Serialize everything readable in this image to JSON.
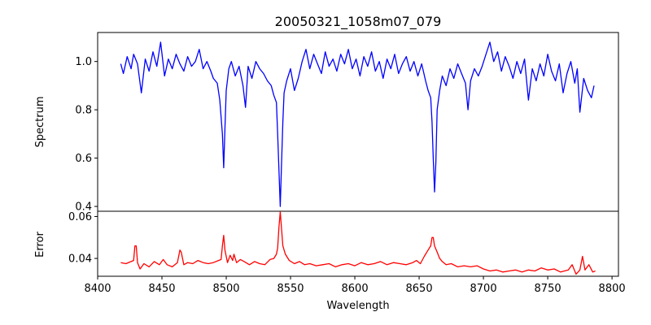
{
  "chart_data": [
    {
      "type": "line",
      "title": "20050321_1058m07_079",
      "xlabel": "",
      "ylabel": "Spectrum",
      "xlim": [
        8400,
        8805
      ],
      "ylim": [
        0.38,
        1.12
      ],
      "xticks": [
        8400,
        8450,
        8500,
        8550,
        8600,
        8650,
        8700,
        8750,
        8800
      ],
      "yticks": [
        0.4,
        0.6,
        0.8,
        1.0
      ],
      "ytick_labels": [
        "0.4",
        "0.6",
        "0.8",
        "1.0"
      ],
      "grid": false,
      "series": [
        {
          "color": "#0000ff",
          "x": [
            8418,
            8420,
            8423,
            8426,
            8428,
            8431,
            8434,
            8437,
            8440,
            8443,
            8446,
            8449,
            8452,
            8455,
            8458,
            8461,
            8464,
            8467,
            8470,
            8473,
            8476,
            8479,
            8482,
            8485,
            8488,
            8490,
            8493,
            8495,
            8497,
            8498,
            8499,
            8500,
            8502,
            8504,
            8507,
            8510,
            8513,
            8515,
            8517,
            8520,
            8523,
            8526,
            8529,
            8532,
            8535,
            8537,
            8539,
            8540,
            8541,
            8542,
            8543,
            8544,
            8545,
            8547,
            8550,
            8553,
            8556,
            8559,
            8562,
            8565,
            8568,
            8571,
            8574,
            8577,
            8580,
            8583,
            8586,
            8589,
            8592,
            8595,
            8598,
            8601,
            8604,
            8607,
            8610,
            8613,
            8616,
            8619,
            8622,
            8625,
            8628,
            8631,
            8634,
            8637,
            8640,
            8643,
            8646,
            8649,
            8652,
            8655,
            8657,
            8659,
            8660,
            8661,
            8662,
            8663,
            8664,
            8666,
            8668,
            8671,
            8674,
            8677,
            8680,
            8683,
            8686,
            8688,
            8690,
            8693,
            8696,
            8699,
            8702,
            8705,
            8708,
            8711,
            8714,
            8717,
            8720,
            8723,
            8726,
            8729,
            8732,
            8735,
            8738,
            8741,
            8744,
            8747,
            8750,
            8753,
            8756,
            8759,
            8762,
            8765,
            8768,
            8771,
            8773,
            8775,
            8778,
            8781,
            8784,
            8786
          ],
          "values": [
            0.99,
            0.95,
            1.02,
            0.97,
            1.03,
            0.99,
            0.87,
            1.01,
            0.96,
            1.04,
            0.98,
            1.08,
            0.94,
            1.01,
            0.97,
            1.03,
            0.99,
            0.96,
            1.02,
            0.98,
            1.0,
            1.05,
            0.97,
            1.0,
            0.96,
            0.93,
            0.91,
            0.84,
            0.7,
            0.56,
            0.72,
            0.88,
            0.97,
            1.0,
            0.94,
            0.98,
            0.9,
            0.81,
            0.98,
            0.93,
            1.0,
            0.97,
            0.95,
            0.92,
            0.9,
            0.86,
            0.83,
            0.7,
            0.55,
            0.4,
            0.58,
            0.75,
            0.87,
            0.92,
            0.97,
            0.88,
            0.93,
            1.0,
            1.05,
            0.97,
            1.03,
            0.99,
            0.95,
            1.04,
            0.98,
            1.01,
            0.96,
            1.03,
            0.99,
            1.05,
            0.97,
            1.01,
            0.94,
            1.02,
            0.98,
            1.04,
            0.96,
            1.0,
            0.93,
            1.01,
            0.97,
            1.03,
            0.95,
            0.99,
            1.02,
            0.96,
            1.0,
            0.94,
            0.99,
            0.92,
            0.88,
            0.85,
            0.75,
            0.6,
            0.46,
            0.58,
            0.8,
            0.88,
            0.94,
            0.9,
            0.97,
            0.93,
            0.99,
            0.95,
            0.91,
            0.8,
            0.92,
            0.97,
            0.94,
            0.98,
            1.03,
            1.08,
            1.0,
            1.04,
            0.96,
            1.02,
            0.98,
            0.93,
            1.0,
            0.95,
            1.01,
            0.84,
            0.97,
            0.92,
            0.99,
            0.94,
            1.03,
            0.96,
            0.92,
            0.99,
            0.87,
            0.95,
            1.0,
            0.91,
            0.97,
            0.79,
            0.93,
            0.88,
            0.85,
            0.9
          ]
        }
      ]
    },
    {
      "type": "line",
      "title": "",
      "xlabel": "Wavelength",
      "ylabel": "Error",
      "xlim": [
        8400,
        8805
      ],
      "ylim": [
        0.0315,
        0.0625
      ],
      "xticks": [
        8400,
        8450,
        8500,
        8550,
        8600,
        8650,
        8700,
        8750,
        8800
      ],
      "xtick_labels": [
        "8400",
        "8450",
        "8500",
        "8550",
        "8600",
        "8650",
        "8700",
        "8750",
        "8800"
      ],
      "yticks": [
        0.04,
        0.06
      ],
      "ytick_labels": [
        "0.04",
        "0.06"
      ],
      "grid": false,
      "series": [
        {
          "color": "#ff0000",
          "x": [
            8418,
            8422,
            8426,
            8428,
            8429,
            8430,
            8431,
            8433,
            8436,
            8440,
            8444,
            8448,
            8451,
            8454,
            8458,
            8462,
            8464,
            8465,
            8467,
            8470,
            8474,
            8478,
            8482,
            8486,
            8490,
            8494,
            8496,
            8497,
            8498,
            8499,
            8501,
            8503,
            8505,
            8506,
            8508,
            8511,
            8514,
            8518,
            8522,
            8526,
            8530,
            8534,
            8537,
            8539,
            8540,
            8541,
            8542,
            8543,
            8544,
            8546,
            8549,
            8553,
            8557,
            8561,
            8565,
            8570,
            8575,
            8580,
            8585,
            8590,
            8595,
            8600,
            8605,
            8610,
            8615,
            8620,
            8625,
            8630,
            8635,
            8640,
            8645,
            8648,
            8651,
            8654,
            8657,
            8659,
            8660,
            8661,
            8662,
            8663,
            8664,
            8666,
            8668,
            8671,
            8675,
            8680,
            8685,
            8690,
            8695,
            8700,
            8705,
            8710,
            8715,
            8720,
            8725,
            8730,
            8735,
            8740,
            8745,
            8750,
            8755,
            8760,
            8763,
            8766,
            8769,
            8772,
            8775,
            8777,
            8779,
            8782,
            8785,
            8787
          ],
          "values": [
            0.038,
            0.0375,
            0.0385,
            0.039,
            0.046,
            0.046,
            0.038,
            0.035,
            0.0375,
            0.036,
            0.0385,
            0.037,
            0.0395,
            0.037,
            0.036,
            0.038,
            0.044,
            0.043,
            0.037,
            0.038,
            0.0375,
            0.039,
            0.038,
            0.0375,
            0.038,
            0.039,
            0.0395,
            0.046,
            0.051,
            0.044,
            0.038,
            0.0415,
            0.039,
            0.042,
            0.038,
            0.0395,
            0.0385,
            0.037,
            0.0385,
            0.0375,
            0.037,
            0.0395,
            0.04,
            0.042,
            0.045,
            0.055,
            0.0622,
            0.054,
            0.046,
            0.042,
            0.039,
            0.0375,
            0.0385,
            0.037,
            0.0375,
            0.0365,
            0.037,
            0.0375,
            0.036,
            0.037,
            0.0375,
            0.0365,
            0.038,
            0.037,
            0.0375,
            0.0385,
            0.037,
            0.038,
            0.0375,
            0.037,
            0.038,
            0.039,
            0.0375,
            0.041,
            0.044,
            0.046,
            0.05,
            0.05,
            0.046,
            0.0445,
            0.043,
            0.04,
            0.0385,
            0.037,
            0.0375,
            0.036,
            0.0365,
            0.036,
            0.0365,
            0.035,
            0.034,
            0.0345,
            0.0335,
            0.034,
            0.0345,
            0.0335,
            0.0345,
            0.034,
            0.0355,
            0.0345,
            0.035,
            0.0335,
            0.034,
            0.0345,
            0.037,
            0.0325,
            0.0345,
            0.041,
            0.0345,
            0.037,
            0.0335,
            0.034
          ]
        }
      ]
    }
  ]
}
